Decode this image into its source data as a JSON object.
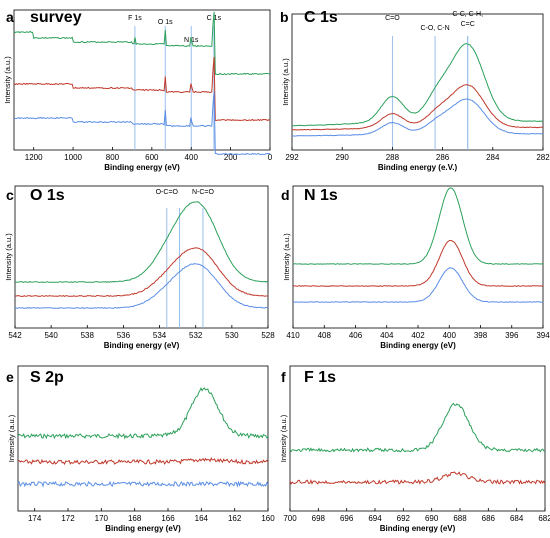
{
  "figure": {
    "colors": {
      "green": "#2ca05a",
      "red": "#c0392b",
      "blue": "#5b8ee6",
      "ref_line": "#8fb8e8",
      "axis": "#000000"
    }
  },
  "chart_data": [
    {
      "id": "a",
      "panel_letter": "a",
      "title": "survey",
      "type": "line",
      "xlabel": "Binding energy (eV)",
      "ylabel": "Intensity (a.u.)",
      "xlim": [
        1300,
        0
      ],
      "xticks": [
        1200,
        1000,
        800,
        600,
        400,
        200,
        0
      ],
      "ref_lines": [
        {
          "x": 686,
          "label": "F 1s"
        },
        {
          "x": 532,
          "label": "O 1s"
        },
        {
          "x": 400,
          "label": "N 1s"
        },
        {
          "x": 285,
          "label": "C 1s"
        }
      ],
      "series_colors": [
        "#2ca05a",
        "#c0392b",
        "#5b8ee6"
      ]
    },
    {
      "id": "b",
      "panel_letter": "b",
      "title": "C 1s",
      "type": "line",
      "xlabel": "Binding energy (e.V.)",
      "ylabel": "Intensity (a.u.)",
      "xlim": [
        292,
        282
      ],
      "xticks": [
        292,
        290,
        288,
        286,
        284,
        282
      ],
      "ref_lines": [
        {
          "x": 288.0,
          "label": "C=O"
        },
        {
          "x": 286.3,
          "label": "C-O, C-N"
        },
        {
          "x": 285.0,
          "label": "C-C, C-H,"
        },
        {
          "x": 285.0,
          "label": "C=C"
        }
      ],
      "series_colors": [
        "#2ca05a",
        "#c0392b",
        "#5b8ee6"
      ]
    },
    {
      "id": "c",
      "panel_letter": "c",
      "title": "O 1s",
      "type": "line",
      "xlabel": "Binding energy (eV)",
      "ylabel": "Intensity (a.u.)",
      "xlim": [
        542,
        528
      ],
      "xticks": [
        542,
        540,
        538,
        536,
        534,
        532,
        530,
        528
      ],
      "ref_lines": [
        {
          "x": 533.6,
          "label": "O-C=O"
        },
        {
          "x": 532.9,
          "label": ""
        },
        {
          "x": 531.6,
          "label": "N-C=O"
        }
      ],
      "series_colors": [
        "#2ca05a",
        "#c0392b",
        "#5b8ee6"
      ]
    },
    {
      "id": "d",
      "panel_letter": "d",
      "title": "N 1s",
      "type": "line",
      "xlabel": "Binding energy (eV)",
      "ylabel": "Intensity (a.u.)",
      "xlim": [
        410,
        394
      ],
      "xticks": [
        410,
        408,
        406,
        404,
        402,
        400,
        398,
        396,
        394
      ],
      "ref_lines": [],
      "series_colors": [
        "#2ca05a",
        "#c0392b",
        "#5b8ee6"
      ]
    },
    {
      "id": "e",
      "panel_letter": "e",
      "title": "S 2p",
      "type": "line",
      "xlabel": "Binding energy (eV)",
      "ylabel": "Intensity (a.u.)",
      "xlim": [
        175,
        160
      ],
      "xticks": [
        174,
        172,
        170,
        168,
        166,
        164,
        162,
        160
      ],
      "ref_lines": [],
      "series_colors": [
        "#2ca05a",
        "#c0392b",
        "#5b8ee6"
      ]
    },
    {
      "id": "f",
      "panel_letter": "f",
      "title": "F 1s",
      "type": "line",
      "xlabel": "Binding energy (eV)",
      "ylabel": "Intensity (a.u.)",
      "xlim": [
        700,
        682
      ],
      "xticks": [
        700,
        698,
        696,
        694,
        692,
        690,
        688,
        686,
        684,
        682
      ],
      "ref_lines": [],
      "series_colors": [
        "#2ca05a",
        "#c0392b"
      ]
    }
  ]
}
